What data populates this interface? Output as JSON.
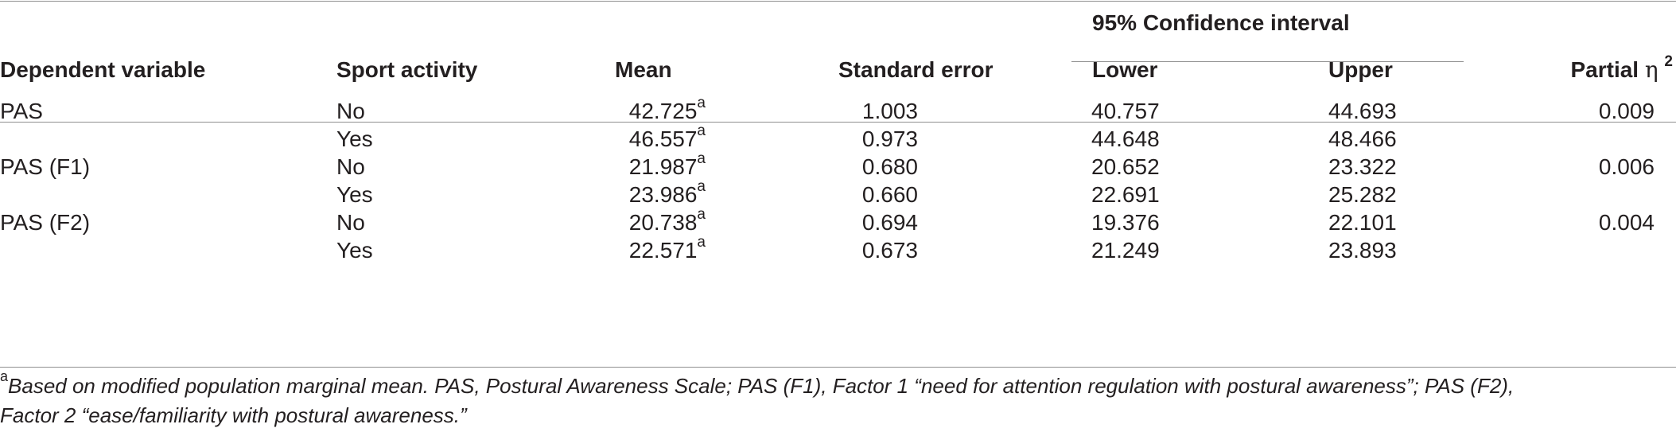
{
  "table": {
    "group_header": "95% Confidence interval",
    "columns": {
      "dependent": "Dependent variable",
      "sport": "Sport activity",
      "mean": "Mean",
      "se": "Standard error",
      "lower": "Lower",
      "upper": "Upper",
      "eta_prefix": "Partial ",
      "eta_symbol": "η",
      "eta_sup": "2"
    },
    "rows": [
      {
        "dependent": "PAS",
        "sport": "No",
        "mean": "42.725",
        "mean_sup": "a",
        "se": "1.003",
        "lower": "40.757",
        "upper": "44.693",
        "eta": "0.009"
      },
      {
        "dependent": "",
        "sport": "Yes",
        "mean": "46.557",
        "mean_sup": "a",
        "se": "0.973",
        "lower": "44.648",
        "upper": "48.466",
        "eta": ""
      },
      {
        "dependent": "PAS (F1)",
        "sport": "No",
        "mean": "21.987",
        "mean_sup": "a",
        "se": "0.680",
        "lower": "20.652",
        "upper": "23.322",
        "eta": "0.006"
      },
      {
        "dependent": "",
        "sport": "Yes",
        "mean": "23.986",
        "mean_sup": "a",
        "se": "0.660",
        "lower": "22.691",
        "upper": "25.282",
        "eta": ""
      },
      {
        "dependent": "PAS (F2)",
        "sport": "No",
        "mean": "20.738",
        "mean_sup": "a",
        "se": "0.694",
        "lower": "19.376",
        "upper": "22.101",
        "eta": "0.004"
      },
      {
        "dependent": "",
        "sport": "Yes",
        "mean": "22.571",
        "mean_sup": "a",
        "se": "0.673",
        "lower": "21.249",
        "upper": "23.893",
        "eta": ""
      }
    ]
  },
  "footnote": {
    "marker": "a",
    "text_line1": "Based on modified population marginal mean. PAS, Postural Awareness Scale; PAS (F1), Factor 1 “need for attention regulation with postural awareness”; PAS (F2),",
    "text_line2": "Factor 2 “ease/familiarity with postural awareness.”"
  }
}
